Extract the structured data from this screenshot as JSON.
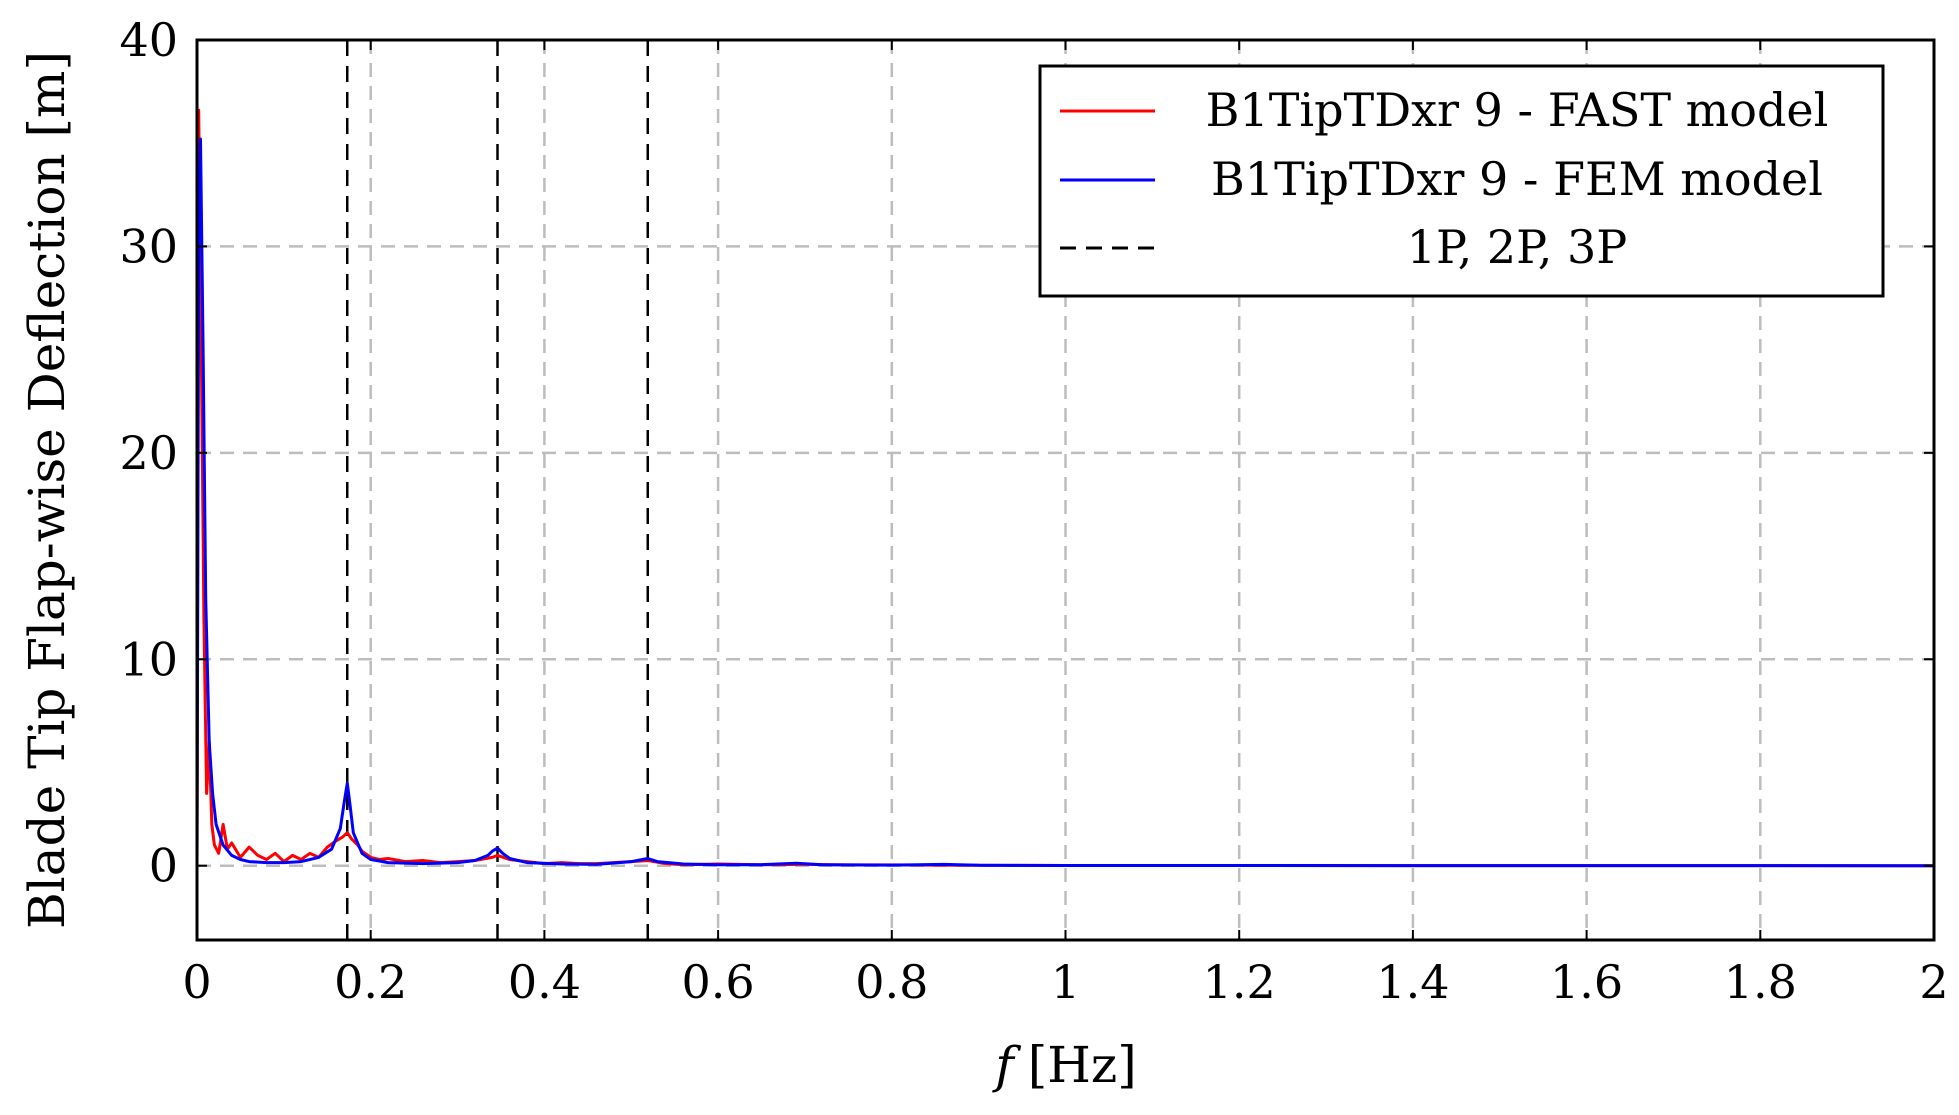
{
  "chart_data": {
    "type": "line",
    "xlabel_var": "f",
    "xlabel_unit": "[Hz]",
    "ylabel": "Blade Tip Flap-wise Deflection [m]",
    "xlim": [
      0,
      2
    ],
    "ylim": [
      -3.6,
      40
    ],
    "grid": true,
    "legend_position": "top-right",
    "x_ticks": [
      0,
      0.2,
      0.4,
      0.6,
      0.8,
      1,
      1.2,
      1.4,
      1.6,
      1.8,
      2
    ],
    "x_tick_labels": [
      "0",
      "0.2",
      "0.4",
      "0.6",
      "0.8",
      "1",
      "1.2",
      "1.4",
      "1.6",
      "1.8",
      "2"
    ],
    "y_ticks": [
      0,
      10,
      20,
      30,
      40
    ],
    "y_tick_labels": [
      "0",
      "10",
      "20",
      "30",
      "40"
    ],
    "vlines": [
      0.173,
      0.346,
      0.519
    ],
    "series": [
      {
        "name": "B1TipTDxr 9 - FAST model",
        "color": "#ff0000",
        "points": [
          [
            0,
            0
          ],
          [
            0.002,
            36.6
          ],
          [
            0.005,
            25
          ],
          [
            0.008,
            12
          ],
          [
            0.011,
            3.5
          ],
          [
            0.014,
            6
          ],
          [
            0.017,
            2
          ],
          [
            0.02,
            1
          ],
          [
            0.025,
            0.6
          ],
          [
            0.03,
            2
          ],
          [
            0.035,
            0.8
          ],
          [
            0.04,
            1.1
          ],
          [
            0.05,
            0.4
          ],
          [
            0.06,
            0.9
          ],
          [
            0.07,
            0.5
          ],
          [
            0.08,
            0.3
          ],
          [
            0.09,
            0.6
          ],
          [
            0.1,
            0.2
          ],
          [
            0.11,
            0.5
          ],
          [
            0.12,
            0.3
          ],
          [
            0.13,
            0.6
          ],
          [
            0.14,
            0.4
          ],
          [
            0.15,
            0.9
          ],
          [
            0.16,
            1.2
          ],
          [
            0.168,
            1.4
          ],
          [
            0.173,
            1.6
          ],
          [
            0.178,
            1.3
          ],
          [
            0.185,
            1.0
          ],
          [
            0.19,
            0.7
          ],
          [
            0.2,
            0.4
          ],
          [
            0.21,
            0.3
          ],
          [
            0.22,
            0.35
          ],
          [
            0.24,
            0.2
          ],
          [
            0.26,
            0.25
          ],
          [
            0.28,
            0.15
          ],
          [
            0.3,
            0.2
          ],
          [
            0.32,
            0.25
          ],
          [
            0.34,
            0.4
          ],
          [
            0.346,
            0.5
          ],
          [
            0.36,
            0.3
          ],
          [
            0.38,
            0.2
          ],
          [
            0.4,
            0.1
          ],
          [
            0.42,
            0.15
          ],
          [
            0.44,
            0.1
          ],
          [
            0.46,
            0.1
          ],
          [
            0.48,
            0.15
          ],
          [
            0.5,
            0.2
          ],
          [
            0.519,
            0.25
          ],
          [
            0.54,
            0.1
          ],
          [
            0.56,
            0.05
          ],
          [
            0.6,
            0.08
          ],
          [
            0.65,
            0.05
          ],
          [
            0.7,
            0.06
          ],
          [
            0.75,
            0.04
          ],
          [
            0.8,
            0.04
          ],
          [
            0.85,
            0.03
          ],
          [
            0.9,
            0.02
          ],
          [
            1.0,
            0.01
          ],
          [
            2.0,
            0.0
          ]
        ]
      },
      {
        "name": "B1TipTDxr 9 - FEM model",
        "color": "#0000ff",
        "points": [
          [
            0,
            0
          ],
          [
            0.002,
            30
          ],
          [
            0.004,
            35.2
          ],
          [
            0.007,
            25
          ],
          [
            0.01,
            13
          ],
          [
            0.014,
            6
          ],
          [
            0.018,
            3.5
          ],
          [
            0.022,
            2
          ],
          [
            0.03,
            1
          ],
          [
            0.04,
            0.5
          ],
          [
            0.05,
            0.3
          ],
          [
            0.06,
            0.2
          ],
          [
            0.08,
            0.15
          ],
          [
            0.1,
            0.15
          ],
          [
            0.12,
            0.2
          ],
          [
            0.14,
            0.4
          ],
          [
            0.155,
            0.8
          ],
          [
            0.165,
            1.8
          ],
          [
            0.17,
            3.2
          ],
          [
            0.173,
            4.0
          ],
          [
            0.176,
            3.0
          ],
          [
            0.18,
            1.6
          ],
          [
            0.19,
            0.6
          ],
          [
            0.2,
            0.3
          ],
          [
            0.22,
            0.15
          ],
          [
            0.26,
            0.1
          ],
          [
            0.3,
            0.15
          ],
          [
            0.32,
            0.25
          ],
          [
            0.335,
            0.5
          ],
          [
            0.34,
            0.7
          ],
          [
            0.346,
            0.85
          ],
          [
            0.352,
            0.6
          ],
          [
            0.36,
            0.35
          ],
          [
            0.38,
            0.15
          ],
          [
            0.42,
            0.08
          ],
          [
            0.46,
            0.06
          ],
          [
            0.5,
            0.2
          ],
          [
            0.519,
            0.35
          ],
          [
            0.53,
            0.2
          ],
          [
            0.56,
            0.08
          ],
          [
            0.6,
            0.05
          ],
          [
            0.65,
            0.05
          ],
          [
            0.69,
            0.12
          ],
          [
            0.72,
            0.05
          ],
          [
            0.8,
            0.03
          ],
          [
            0.86,
            0.06
          ],
          [
            0.9,
            0.02
          ],
          [
            1.0,
            0.01
          ],
          [
            2.0,
            0.0
          ]
        ]
      }
    ],
    "legend": [
      {
        "label": "B1TipTDxr 9 - FAST model",
        "color": "#ff0000",
        "style": "solid"
      },
      {
        "label": "B1TipTDxr 9 - FEM model",
        "color": "#0000ff",
        "style": "solid"
      },
      {
        "label": "1P, 2P, 3P",
        "color": "#000000",
        "style": "dashed"
      }
    ]
  }
}
